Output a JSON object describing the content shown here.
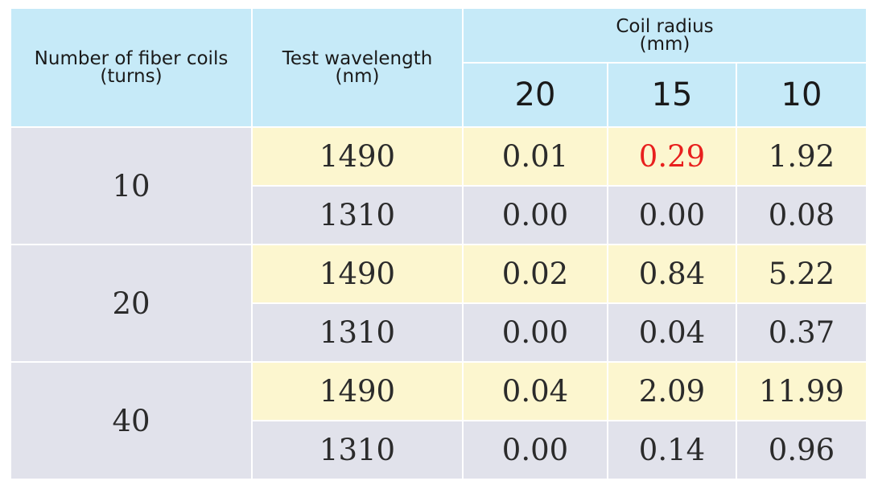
{
  "table": {
    "headers": {
      "turns_line1": "Number of fiber coils",
      "turns_line2": "(turns)",
      "wavelength_line1": "Test wavelength",
      "wavelength_line2": "(nm)",
      "radius_line1": "Coil radius",
      "radius_line2": "(mm)",
      "radius_values": [
        "20",
        "15",
        "10"
      ]
    },
    "groups": [
      {
        "turns": "10",
        "rows": [
          {
            "wavelength": "1490",
            "values": [
              "0.01",
              "0.29",
              "1.92"
            ]
          },
          {
            "wavelength": "1310",
            "values": [
              "0.00",
              "0.00",
              "0.08"
            ]
          }
        ]
      },
      {
        "turns": "20",
        "rows": [
          {
            "wavelength": "1490",
            "values": [
              "0.02",
              "0.84",
              "5.22"
            ]
          },
          {
            "wavelength": "1310",
            "values": [
              "0.00",
              "0.04",
              "0.37"
            ]
          }
        ]
      },
      {
        "turns": "40",
        "rows": [
          {
            "wavelength": "1490",
            "values": [
              "0.04",
              "2.09",
              "11.99"
            ]
          },
          {
            "wavelength": "1310",
            "values": [
              "0.00",
              "0.14",
              "0.96"
            ]
          }
        ]
      }
    ],
    "highlight_color": "#e8201e"
  }
}
